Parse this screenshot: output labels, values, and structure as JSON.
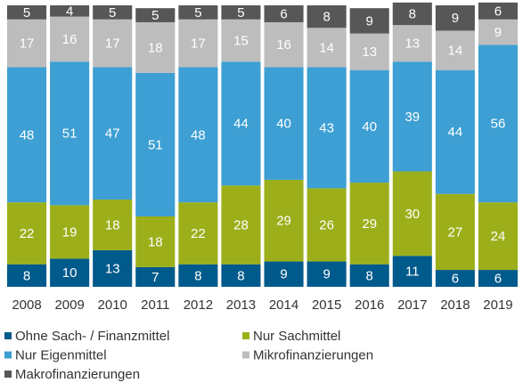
{
  "chart_data": {
    "type": "stacked_bar",
    "categories": [
      "2008",
      "2009",
      "2010",
      "2011",
      "2012",
      "2013",
      "2014",
      "2015",
      "2016",
      "2017",
      "2018",
      "2019"
    ],
    "series": [
      {
        "name": "Ohne Sach- / Finanzmittel",
        "color": "#005a8b",
        "values": [
          8,
          10,
          13,
          7,
          8,
          8,
          9,
          9,
          8,
          11,
          6,
          6
        ]
      },
      {
        "name": "Nur Sachmittel",
        "color": "#9caf1a",
        "values": [
          22,
          19,
          18,
          18,
          22,
          28,
          29,
          26,
          29,
          30,
          27,
          24
        ]
      },
      {
        "name": "Nur Eigenmittel",
        "color": "#3d9fd3",
        "values": [
          48,
          51,
          47,
          51,
          48,
          44,
          40,
          43,
          40,
          39,
          44,
          56
        ]
      },
      {
        "name": "Mikrofinanzierungen",
        "color": "#bdbdbd",
        "values": [
          17,
          16,
          17,
          18,
          17,
          15,
          16,
          14,
          13,
          13,
          14,
          9
        ]
      },
      {
        "name": "Makrofinanzierungen",
        "color": "#575757",
        "values": [
          5,
          4,
          5,
          5,
          5,
          5,
          6,
          8,
          9,
          8,
          9,
          6
        ]
      }
    ],
    "ylim": [
      0,
      100
    ]
  }
}
